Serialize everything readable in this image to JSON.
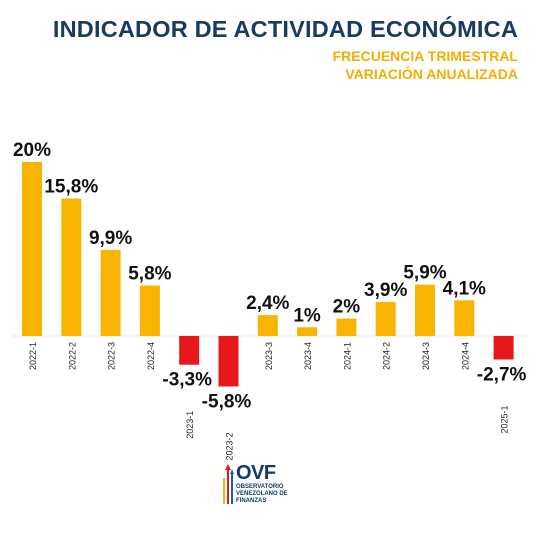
{
  "header": {
    "title": "INDICADOR DE ACTIVIDAD ECONÓMICA",
    "subtitle_line1": "FRECUENCIA TRIMESTRAL",
    "subtitle_line2": "VARIACIÓN ANUALIZADA"
  },
  "colors": {
    "title": "#1b3a63",
    "subtitle": "#f5ae00",
    "positive": "#f8b400",
    "negative": "#e8171b",
    "axis": "#e6e6e6",
    "label": "#111111"
  },
  "chart_data": {
    "type": "bar",
    "title": "INDICADOR DE ACTIVIDAD ECONÓMICA",
    "subtitle": "FRECUENCIA TRIMESTRAL VARIACIÓN ANUALIZADA",
    "categories": [
      "2022-1",
      "2022-2",
      "2022-3",
      "2022-4",
      "2023-1",
      "2023-2",
      "2023-3",
      "2023-4",
      "2024-1",
      "2024-2",
      "2024-3",
      "2024-4",
      "2025-1"
    ],
    "values": [
      20,
      15.8,
      9.9,
      5.8,
      -3.3,
      -5.8,
      2.4,
      1,
      2,
      3.9,
      5.9,
      4.1,
      -2.7
    ],
    "value_labels": [
      "20%",
      "15,8%",
      "9,9%",
      "5,8%",
      "-3,3%",
      "-5,8%",
      "2,4%",
      "1%",
      "2%",
      "3,9%",
      "5,9%",
      "4,1%",
      "-2,7%"
    ],
    "xlabel": "",
    "ylabel": "",
    "grid": false,
    "legend": "none"
  },
  "logo": {
    "word": "OVF",
    "line1": "OBSERVATORIO",
    "line2": "VENEZOLANO DE",
    "line3": "FINANZAS"
  }
}
